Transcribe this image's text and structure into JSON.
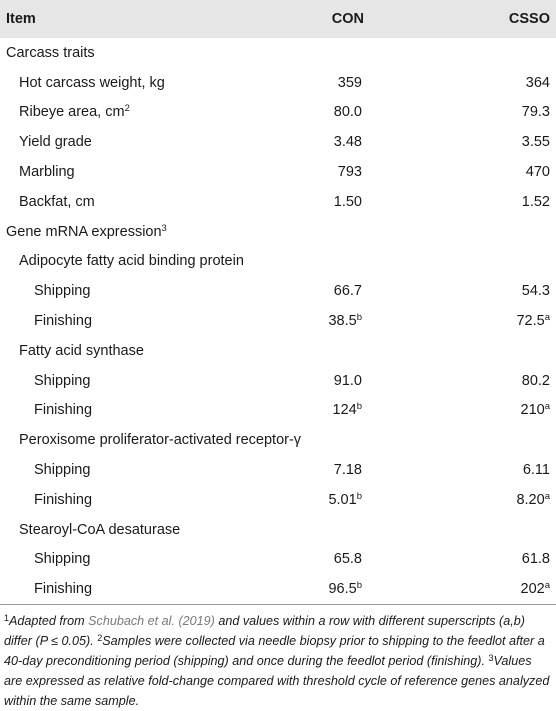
{
  "header": {
    "item": "Item",
    "con": "CON",
    "csso": "CSSO"
  },
  "rows": [
    {
      "label": "Carcass traits",
      "level": 0,
      "con": "",
      "csso": ""
    },
    {
      "label": "Hot carcass weight, kg",
      "level": 1,
      "con": "359",
      "csso": "364"
    },
    {
      "label": "Ribeye area, cm",
      "label_sup": "2",
      "level": 1,
      "con": "80.0",
      "csso": "79.3"
    },
    {
      "label": "Yield grade",
      "level": 1,
      "con": "3.48",
      "csso": "3.55"
    },
    {
      "label": "Marbling",
      "level": 1,
      "con": "793",
      "csso": "470"
    },
    {
      "label": "Backfat, cm",
      "level": 1,
      "con": "1.50",
      "csso": "1.52"
    },
    {
      "label": "Gene mRNA expression",
      "label_sup": "3",
      "level": 0,
      "con": "",
      "csso": ""
    },
    {
      "label": "Adipocyte fatty acid binding protein",
      "level": 1,
      "con": "",
      "csso": ""
    },
    {
      "label": "Shipping",
      "level": 2,
      "con": "66.7",
      "csso": "54.3"
    },
    {
      "label": "Finishing",
      "level": 2,
      "con": "38.5",
      "con_sup": "b",
      "csso": "72.5",
      "csso_sup": "a"
    },
    {
      "label": "Fatty acid synthase",
      "level": 1,
      "con": "",
      "csso": ""
    },
    {
      "label": "Shipping",
      "level": 2,
      "con": "91.0",
      "csso": "80.2"
    },
    {
      "label": "Finishing",
      "level": 2,
      "con": "124",
      "con_sup": "b",
      "csso": "210",
      "csso_sup": "a"
    },
    {
      "label": "Peroxisome proliferator-activated receptor-γ",
      "level": 1,
      "con": "",
      "csso": ""
    },
    {
      "label": "Shipping",
      "level": 2,
      "con": "7.18",
      "csso": "6.11"
    },
    {
      "label": "Finishing",
      "level": 2,
      "con": "5.01",
      "con_sup": "b",
      "csso": "8.20",
      "csso_sup": "a"
    },
    {
      "label": "Stearoyl-CoA desaturase",
      "level": 1,
      "con": "",
      "csso": ""
    },
    {
      "label": "Shipping",
      "level": 2,
      "con": "65.8",
      "csso": "61.8"
    },
    {
      "label": "Finishing",
      "level": 2,
      "con": "96.5",
      "con_sup": "b",
      "csso": "202",
      "csso_sup": "a"
    }
  ],
  "footnote": {
    "sup1": "1",
    "part1": "Adapted from ",
    "cite": "Schubach et al. (2019)",
    "part2": " and values within a row with different superscripts (a,b) differ (P ≤ 0.05). ",
    "sup2": "2",
    "part3": "Samples were collected via needle biopsy prior to shipping to the feedlot after a 40-day preconditioning period (shipping) and once during the feedlot period (finishing). ",
    "sup3": "3",
    "part4": "Values are expressed as relative fold-change compared with threshold cycle of reference genes analyzed within the same sample."
  }
}
